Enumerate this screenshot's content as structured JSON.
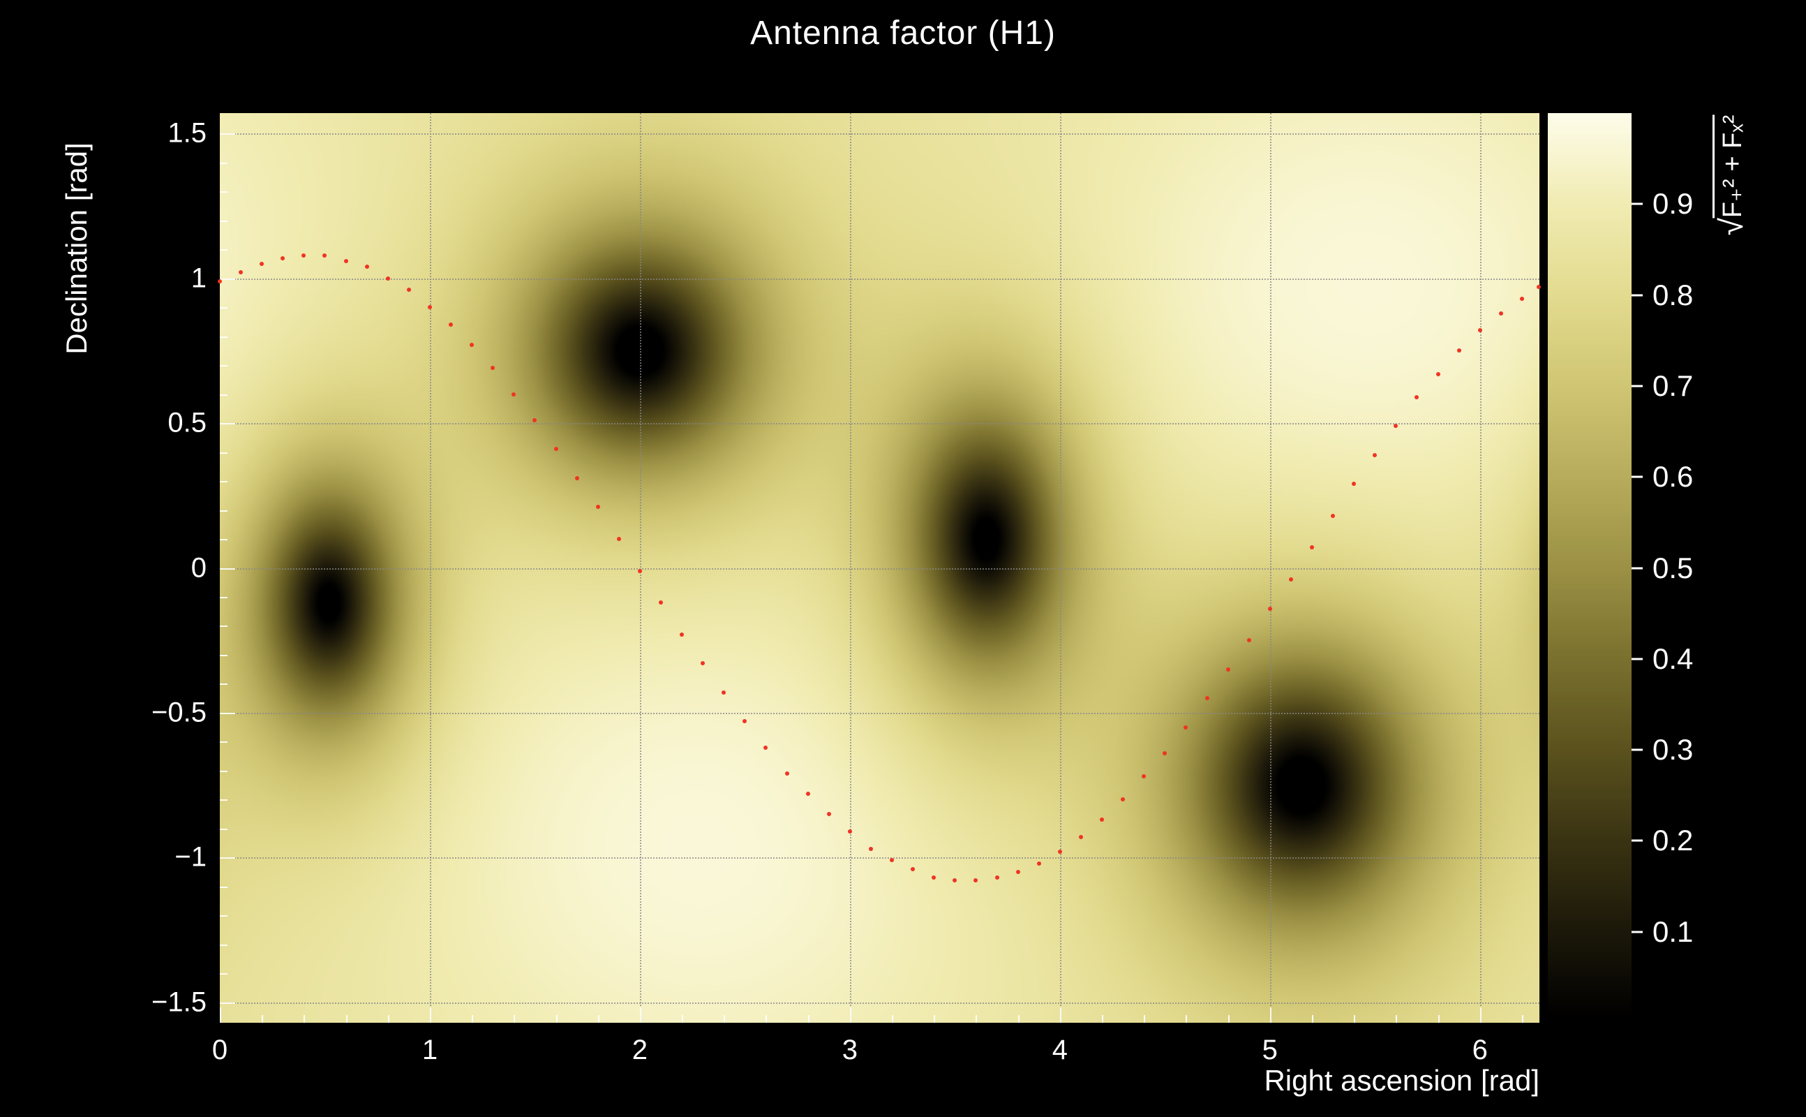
{
  "title": "Antenna factor (H1)",
  "axes": {
    "x": {
      "label": "Right ascension [rad]",
      "min": 0,
      "max": 6.2832,
      "ticks": [
        {
          "v": 0,
          "label": "0"
        },
        {
          "v": 1,
          "label": "1"
        },
        {
          "v": 2,
          "label": "2"
        },
        {
          "v": 3,
          "label": "3"
        },
        {
          "v": 4,
          "label": "4"
        },
        {
          "v": 5,
          "label": "5"
        },
        {
          "v": 6,
          "label": "6"
        }
      ]
    },
    "y": {
      "label": "Declination [rad]",
      "min": -1.5708,
      "max": 1.5708,
      "ticks": [
        {
          "v": 1.5,
          "label": "1.5"
        },
        {
          "v": 1,
          "label": "1"
        },
        {
          "v": 0.5,
          "label": "0.5"
        },
        {
          "v": 0,
          "label": "0"
        },
        {
          "v": -0.5,
          "label": "−0.5"
        },
        {
          "v": -1,
          "label": "−1"
        },
        {
          "v": -1.5,
          "label": "−1.5"
        }
      ]
    },
    "z": {
      "label_radical": "√",
      "label_expr": "F₊² + Fₓ²",
      "min": 0,
      "max": 1,
      "ticks": [
        {
          "v": 0.9,
          "label": "0.9"
        },
        {
          "v": 0.8,
          "label": "0.8"
        },
        {
          "v": 0.7,
          "label": "0.7"
        },
        {
          "v": 0.6,
          "label": "0.6"
        },
        {
          "v": 0.5,
          "label": "0.5"
        },
        {
          "v": 0.4,
          "label": "0.4"
        },
        {
          "v": 0.3,
          "label": "0.3"
        },
        {
          "v": 0.2,
          "label": "0.2"
        },
        {
          "v": 0.1,
          "label": "0.1"
        }
      ]
    }
  },
  "chart_data": {
    "type": "heatmap",
    "title": "Antenna factor (H1)",
    "xlabel": "Right ascension [rad]",
    "ylabel": "Declination [rad]",
    "zlabel": "sqrt(F+^2 + Fx^2)",
    "xlim": [
      0,
      6.2832
    ],
    "ylim": [
      -1.5708,
      1.5708
    ],
    "zlim": [
      0,
      1
    ],
    "grid": true,
    "colorbar_ticks": [
      0.1,
      0.2,
      0.3,
      0.4,
      0.5,
      0.6,
      0.7,
      0.8,
      0.9
    ],
    "pattern_minima": [
      [
        0.52,
        -0.12
      ],
      [
        2.0,
        0.75
      ],
      [
        3.65,
        0.1
      ],
      [
        5.15,
        -0.75
      ]
    ],
    "pattern_maxima": [
      [
        2.3,
        -0.95
      ],
      [
        5.45,
        0.95
      ]
    ],
    "field_model": {
      "base": 0.84,
      "period_x": 6.2832,
      "null_profile_power": 1.4,
      "maxima": [
        {
          "x": 2.3,
          "y": -0.95,
          "amp": 0.13,
          "sx": 1.5,
          "sy": 1.0
        },
        {
          "x": 5.45,
          "y": 0.95,
          "amp": 0.13,
          "sx": 1.5,
          "sy": 1.0
        }
      ],
      "nulls": [
        {
          "x": 0.52,
          "y": -0.12,
          "amp": 0.93,
          "sx": 0.34,
          "sy": 0.42
        },
        {
          "x": 2.0,
          "y": 0.75,
          "amp": 0.95,
          "sx": 0.52,
          "sy": 0.4
        },
        {
          "x": 3.65,
          "y": 0.1,
          "amp": 0.93,
          "sx": 0.38,
          "sy": 0.46
        },
        {
          "x": 5.15,
          "y": -0.75,
          "amp": 0.95,
          "sx": 0.54,
          "sy": 0.46
        }
      ]
    },
    "colormap": [
      [
        0.0,
        "#000000"
      ],
      [
        0.1,
        "#1d190a"
      ],
      [
        0.2,
        "#3b3413"
      ],
      [
        0.3,
        "#5b521e"
      ],
      [
        0.4,
        "#7b712f"
      ],
      [
        0.5,
        "#9c9145"
      ],
      [
        0.6,
        "#b7ad5c"
      ],
      [
        0.7,
        "#d0c673"
      ],
      [
        0.8,
        "#e3db8f"
      ],
      [
        0.9,
        "#f1ecb2"
      ],
      [
        0.96,
        "#f9f6d4"
      ],
      [
        1.0,
        "#fdfce8"
      ]
    ],
    "trajectory": {
      "name": "red-dotted-track",
      "color": "#ef3423",
      "marker": "dot",
      "points": [
        [
          0.0,
          0.99
        ],
        [
          0.1,
          1.02
        ],
        [
          0.2,
          1.05
        ],
        [
          0.3,
          1.07
        ],
        [
          0.4,
          1.08
        ],
        [
          0.5,
          1.08
        ],
        [
          0.6,
          1.06
        ],
        [
          0.7,
          1.04
        ],
        [
          0.8,
          1.0
        ],
        [
          0.9,
          0.96
        ],
        [
          1.0,
          0.9
        ],
        [
          1.1,
          0.84
        ],
        [
          1.2,
          0.77
        ],
        [
          1.3,
          0.69
        ],
        [
          1.4,
          0.6
        ],
        [
          1.5,
          0.51
        ],
        [
          1.6,
          0.41
        ],
        [
          1.7,
          0.31
        ],
        [
          1.8,
          0.21
        ],
        [
          1.9,
          0.1
        ],
        [
          2.0,
          -0.01
        ],
        [
          2.1,
          -0.12
        ],
        [
          2.2,
          -0.23
        ],
        [
          2.3,
          -0.33
        ],
        [
          2.4,
          -0.43
        ],
        [
          2.5,
          -0.53
        ],
        [
          2.6,
          -0.62
        ],
        [
          2.7,
          -0.71
        ],
        [
          2.8,
          -0.78
        ],
        [
          2.9,
          -0.85
        ],
        [
          3.0,
          -0.91
        ],
        [
          3.1,
          -0.97
        ],
        [
          3.2,
          -1.01
        ],
        [
          3.3,
          -1.04
        ],
        [
          3.4,
          -1.07
        ],
        [
          3.5,
          -1.08
        ],
        [
          3.6,
          -1.08
        ],
        [
          3.7,
          -1.07
        ],
        [
          3.8,
          -1.05
        ],
        [
          3.9,
          -1.02
        ],
        [
          4.0,
          -0.98
        ],
        [
          4.1,
          -0.93
        ],
        [
          4.2,
          -0.87
        ],
        [
          4.3,
          -0.8
        ],
        [
          4.4,
          -0.72
        ],
        [
          4.5,
          -0.64
        ],
        [
          4.6,
          -0.55
        ],
        [
          4.7,
          -0.45
        ],
        [
          4.8,
          -0.35
        ],
        [
          4.9,
          -0.25
        ],
        [
          5.0,
          -0.14
        ],
        [
          5.1,
          -0.04
        ],
        [
          5.2,
          0.07
        ],
        [
          5.3,
          0.18
        ],
        [
          5.4,
          0.29
        ],
        [
          5.5,
          0.39
        ],
        [
          5.6,
          0.49
        ],
        [
          5.7,
          0.59
        ],
        [
          5.8,
          0.67
        ],
        [
          5.9,
          0.75
        ],
        [
          6.0,
          0.82
        ],
        [
          6.1,
          0.88
        ],
        [
          6.2,
          0.93
        ],
        [
          6.28,
          0.97
        ]
      ]
    }
  },
  "colors": {
    "background": "#000000",
    "text": "#ffffff",
    "grid": "#878787",
    "trajectory": "#ef3423"
  }
}
